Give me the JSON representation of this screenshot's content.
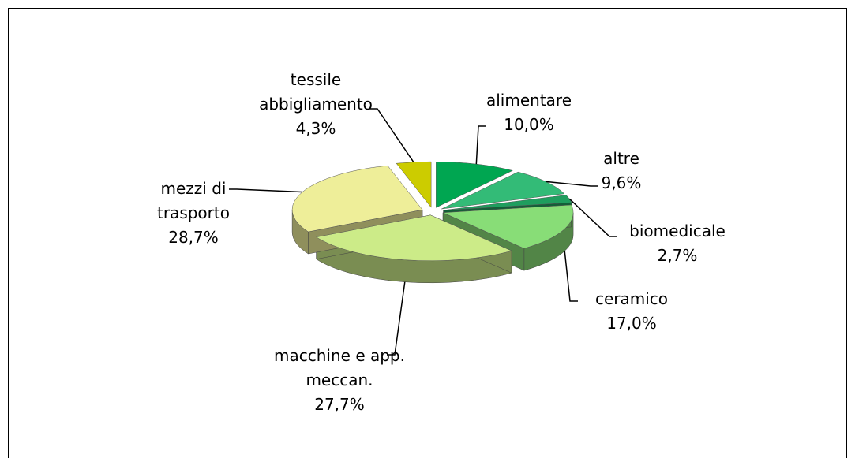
{
  "chart_data": {
    "type": "pie",
    "categories": [
      "alimentare",
      "altre",
      "biomedicale",
      "ceramico",
      "macchine e app. meccan.",
      "mezzi di trasporto",
      "tessile abbigliamento"
    ],
    "values": [
      10.0,
      9.6,
      2.7,
      17.0,
      27.7,
      28.7,
      4.3
    ],
    "value_labels": [
      "10,0%",
      "9,6%",
      "2,7%",
      "17,0%",
      "27,7%",
      "28,7%",
      "4,3%"
    ],
    "colors": [
      "#00a651",
      "#33bb77",
      "#1f9e5e",
      "#88dd77",
      "#cceb88",
      "#eeee99",
      "#cccc00"
    ]
  }
}
